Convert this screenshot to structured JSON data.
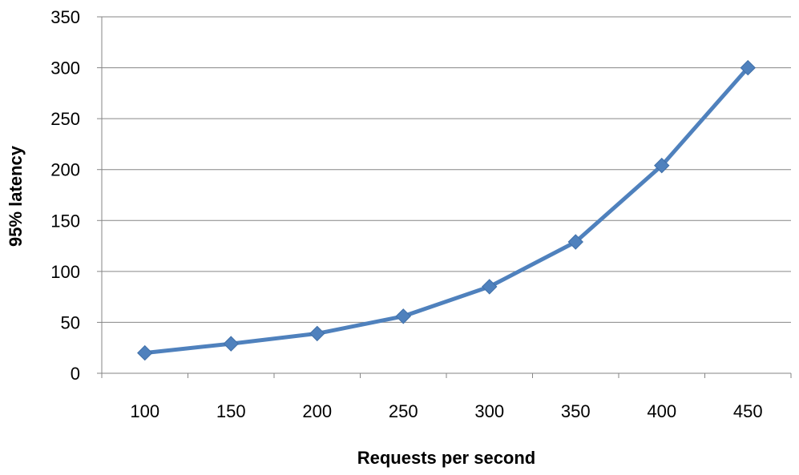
{
  "chart_data": {
    "type": "line",
    "title": "",
    "xlabel": "Requests per second",
    "ylabel": "95% latency",
    "categories": [
      "100",
      "150",
      "200",
      "250",
      "300",
      "350",
      "400",
      "450"
    ],
    "series": [
      {
        "values": [
          20,
          29,
          39,
          56,
          85,
          129,
          204,
          300
        ]
      }
    ],
    "ylim": [
      0,
      350
    ],
    "yticks": [
      "0",
      "50",
      "100",
      "150",
      "200",
      "250",
      "300",
      "350"
    ],
    "grid": true,
    "legend": "none",
    "line_color": "#4F81BD",
    "grid_color": "#868686"
  }
}
